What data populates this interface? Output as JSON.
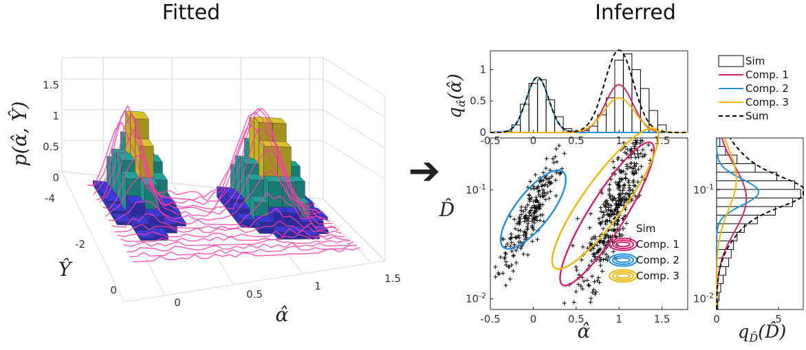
{
  "titles": {
    "left": "Fitted",
    "right": "Inferred"
  },
  "arrow": "➔",
  "colors": {
    "comp1": "#d61f6e",
    "comp2": "#1f8fe0",
    "comp3": "#f2b600",
    "sum": "#000000",
    "hist": "#000000",
    "bar_low": "#3a3ad6",
    "bar_mid": "#22a39a",
    "bar_high": "#d8c22a"
  },
  "panel_left": {
    "zlabel": "p(α̂, Ŷ)",
    "ylabel": "Ŷ",
    "xlabel": "α̂",
    "z_ticks": [
      "0",
      "0.5",
      "1",
      "1.5"
    ],
    "y_ticks": [
      "-4",
      "-2",
      "0"
    ],
    "x_ticks": [
      "0",
      "0.5",
      "1",
      "1.5"
    ]
  },
  "legend": {
    "top": [
      {
        "label": "Sim",
        "style": "box"
      },
      {
        "label": "Comp. 1",
        "style": "comp1"
      },
      {
        "label": "Comp. 2",
        "style": "comp2"
      },
      {
        "label": "Comp. 3",
        "style": "comp3"
      },
      {
        "label": "Sum",
        "style": "dash"
      }
    ],
    "scatter": [
      {
        "label": "Sim",
        "style": "plus"
      },
      {
        "label": "Comp. 1",
        "style": "comp1"
      },
      {
        "label": "Comp. 2",
        "style": "comp2"
      },
      {
        "label": "Comp. 3",
        "style": "comp3"
      }
    ]
  },
  "chart_data": [
    {
      "type": "bar",
      "panel": "Fitted",
      "description": "3D histogram of joint density with fitted overlay",
      "xlabel": "α̂",
      "ylabel": "Ŷ",
      "zlabel": "p(α̂, Ŷ)",
      "xlim": [
        -0.3,
        1.6
      ],
      "ylim": [
        -4.5,
        0.5
      ],
      "zlim": [
        0,
        1.6
      ],
      "x_ticks": [
        0,
        0.5,
        1,
        1.5
      ],
      "y_ticks": [
        -4,
        -2,
        0
      ],
      "z_ticks": [
        0,
        0.5,
        1,
        1.5
      ],
      "clusters": [
        {
          "center_alpha": 0.05,
          "center_Y": -3.6,
          "peak_density": 1.2
        },
        {
          "center_alpha": 1.0,
          "center_Y": -3.6,
          "peak_density": 1.35
        }
      ]
    },
    {
      "type": "bar",
      "panel": "Inferred top marginal",
      "ylabel": "q_α̂(α̂)",
      "xlim": [
        -0.5,
        1.8
      ],
      "ylim": [
        0,
        1.3
      ],
      "x_ticks": [
        -0.5,
        0,
        0.5,
        1,
        1.5
      ],
      "y_ticks": [
        0,
        0.5,
        1
      ],
      "histogram": {
        "edges": [
          -0.45,
          -0.35,
          -0.25,
          -0.15,
          -0.05,
          0.05,
          0.15,
          0.25,
          0.35,
          0.45,
          0.55,
          0.65,
          0.75,
          0.85,
          0.95,
          1.05,
          1.15,
          1.25,
          1.35,
          1.45,
          1.55
        ],
        "values": [
          0.01,
          0.02,
          0.12,
          0.45,
          0.78,
          0.84,
          0.52,
          0.25,
          0.06,
          0.02,
          0.03,
          0.1,
          0.28,
          0.55,
          1.15,
          1.25,
          1.0,
          0.7,
          0.35,
          0.12
        ]
      },
      "series": [
        {
          "name": "Comp. 1",
          "mean": 1.0,
          "sd": 0.16,
          "peak": 0.76
        },
        {
          "name": "Comp. 2",
          "mean": 0.05,
          "sd": 0.13,
          "peak": 0.88
        },
        {
          "name": "Comp. 3",
          "mean": 1.0,
          "sd": 0.18,
          "peak": 0.55
        },
        {
          "name": "Sum"
        }
      ]
    },
    {
      "type": "scatter",
      "panel": "Inferred joint",
      "xlabel": "α̂",
      "ylabel": "D̂",
      "yscale": "log",
      "xlim": [
        -0.5,
        1.8
      ],
      "ylim": [
        0.008,
        0.3
      ],
      "x_ticks": [
        -0.5,
        0,
        0.5,
        1,
        1.5
      ],
      "y_ticks": [
        0.01,
        0.1
      ],
      "clusters": [
        {
          "name": "Comp. 2",
          "center_alpha": -0.05,
          "center_logD": -1.2,
          "n": 220
        },
        {
          "name": "Comp. 1 / Comp. 3",
          "center_alpha": 0.95,
          "center_logD": -1.1,
          "n": 400
        }
      ],
      "ellipses": [
        {
          "name": "Comp. 1",
          "x_range": [
            0.35,
            1.3
          ],
          "D_range": [
            0.009,
            0.25
          ]
        },
        {
          "name": "Comp. 2",
          "x_range": [
            -0.35,
            0.35
          ],
          "D_range": [
            0.03,
            0.2
          ]
        },
        {
          "name": "Comp. 3",
          "x_range": [
            0.35,
            1.35
          ],
          "D_range": [
            0.013,
            0.3
          ]
        }
      ]
    },
    {
      "type": "bar",
      "panel": "Inferred right marginal",
      "xlabel": "q_D̂(D̂)",
      "xlim": [
        0,
        7
      ],
      "x_ticks": [
        0,
        5
      ],
      "yscale": "log",
      "ylim": [
        0.008,
        0.3
      ],
      "y_ticks": [
        0.01,
        0.1
      ]
    }
  ]
}
